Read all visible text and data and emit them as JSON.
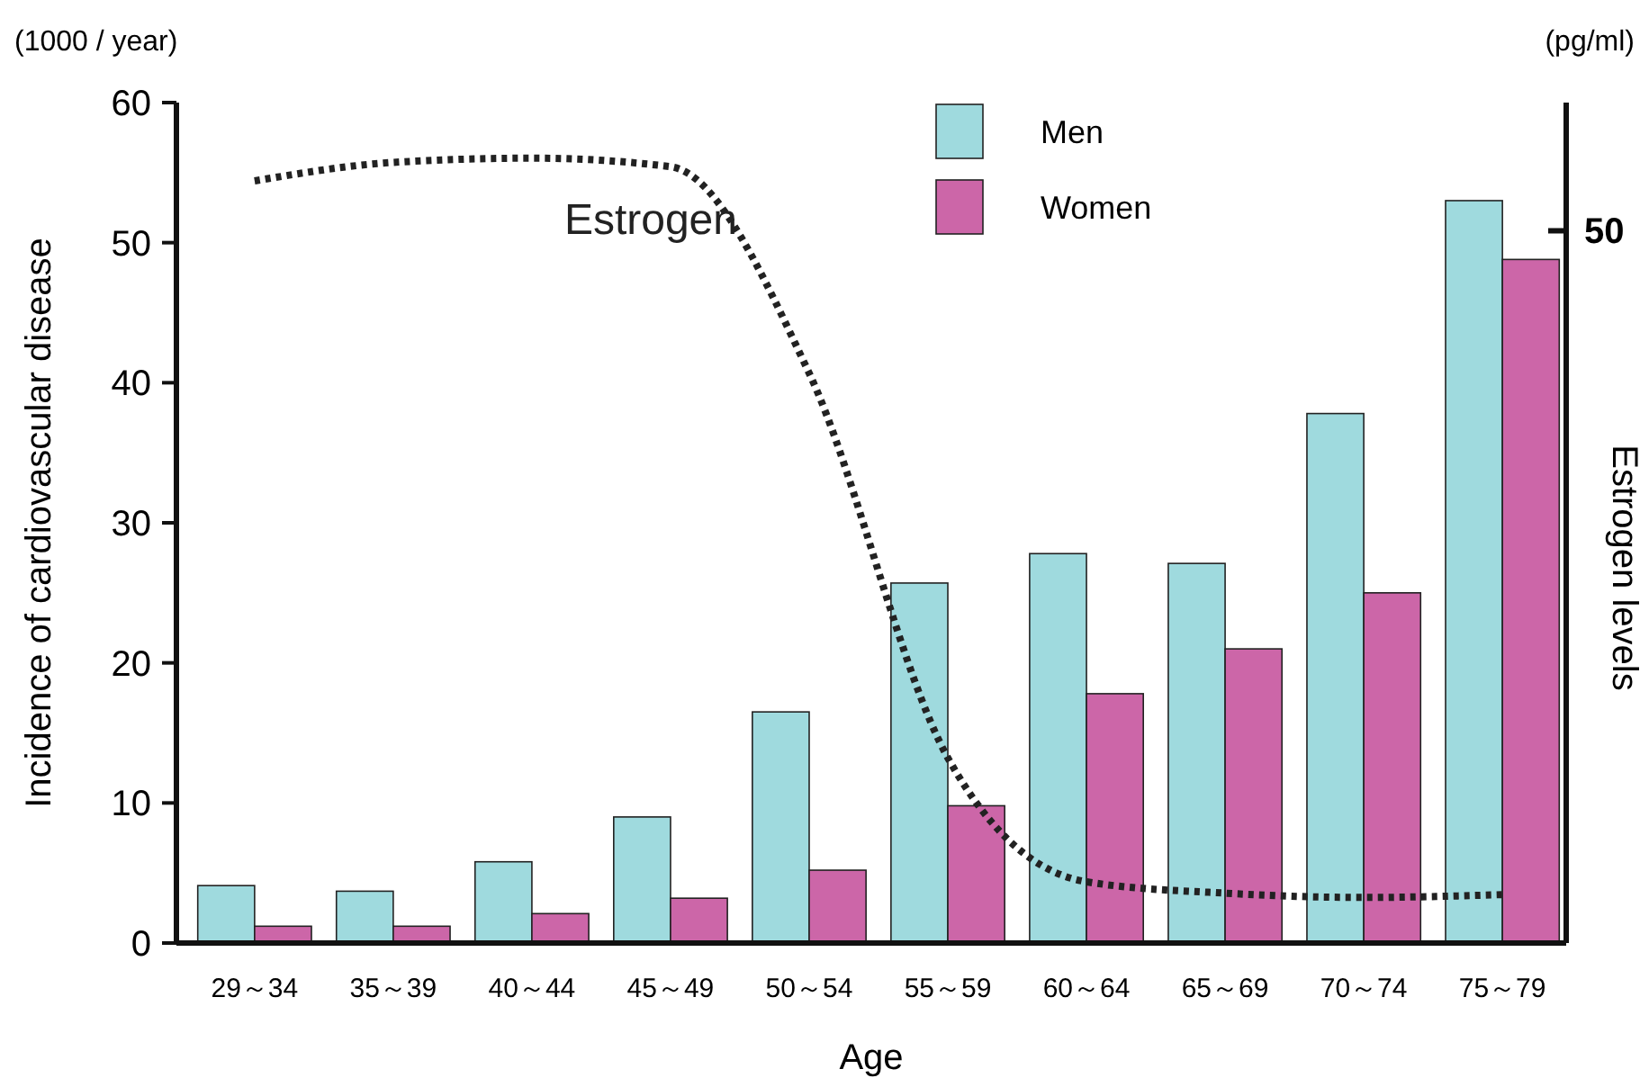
{
  "chart_data": {
    "type": "bar",
    "xlabel": "Age",
    "ylabel": "Incidence of cardiovascular disease",
    "y2label": "Estrogen levels",
    "categories": [
      "29～34",
      "35～39",
      "40～44",
      "45～49",
      "50～54",
      "55～59",
      "60～64",
      "65～69",
      "70～74",
      "75～79"
    ],
    "series": [
      {
        "name": "Men",
        "color": "#9fdade",
        "values": [
          4.1,
          3.7,
          5.8,
          9.0,
          16.5,
          25.7,
          27.8,
          27.1,
          37.8,
          53
        ]
      },
      {
        "name": "Women",
        "color": "#cc66a8",
        "values": [
          1.2,
          1.2,
          2.1,
          3.2,
          5.2,
          9.8,
          17.8,
          21,
          25,
          48.8
        ]
      },
      {
        "name": "Estrogen",
        "type": "line",
        "axis": "y2",
        "color": "#222222",
        "line_style": "dotted",
        "marker": "none",
        "values": [
          53.5,
          54.8,
          55.1,
          54.5,
          40,
          13,
          4.3,
          3.5,
          3.2,
          3.4
        ]
      }
    ],
    "ylim": [
      0,
      60
    ],
    "yticks": [
      0,
      10,
      20,
      30,
      40,
      50,
      60
    ],
    "y2lim": [
      0,
      59
    ],
    "y2ticks": [
      50
    ],
    "annotations": [
      "(1000 / year)",
      "(pg/ml)"
    ],
    "legend": "top",
    "grid": false
  }
}
